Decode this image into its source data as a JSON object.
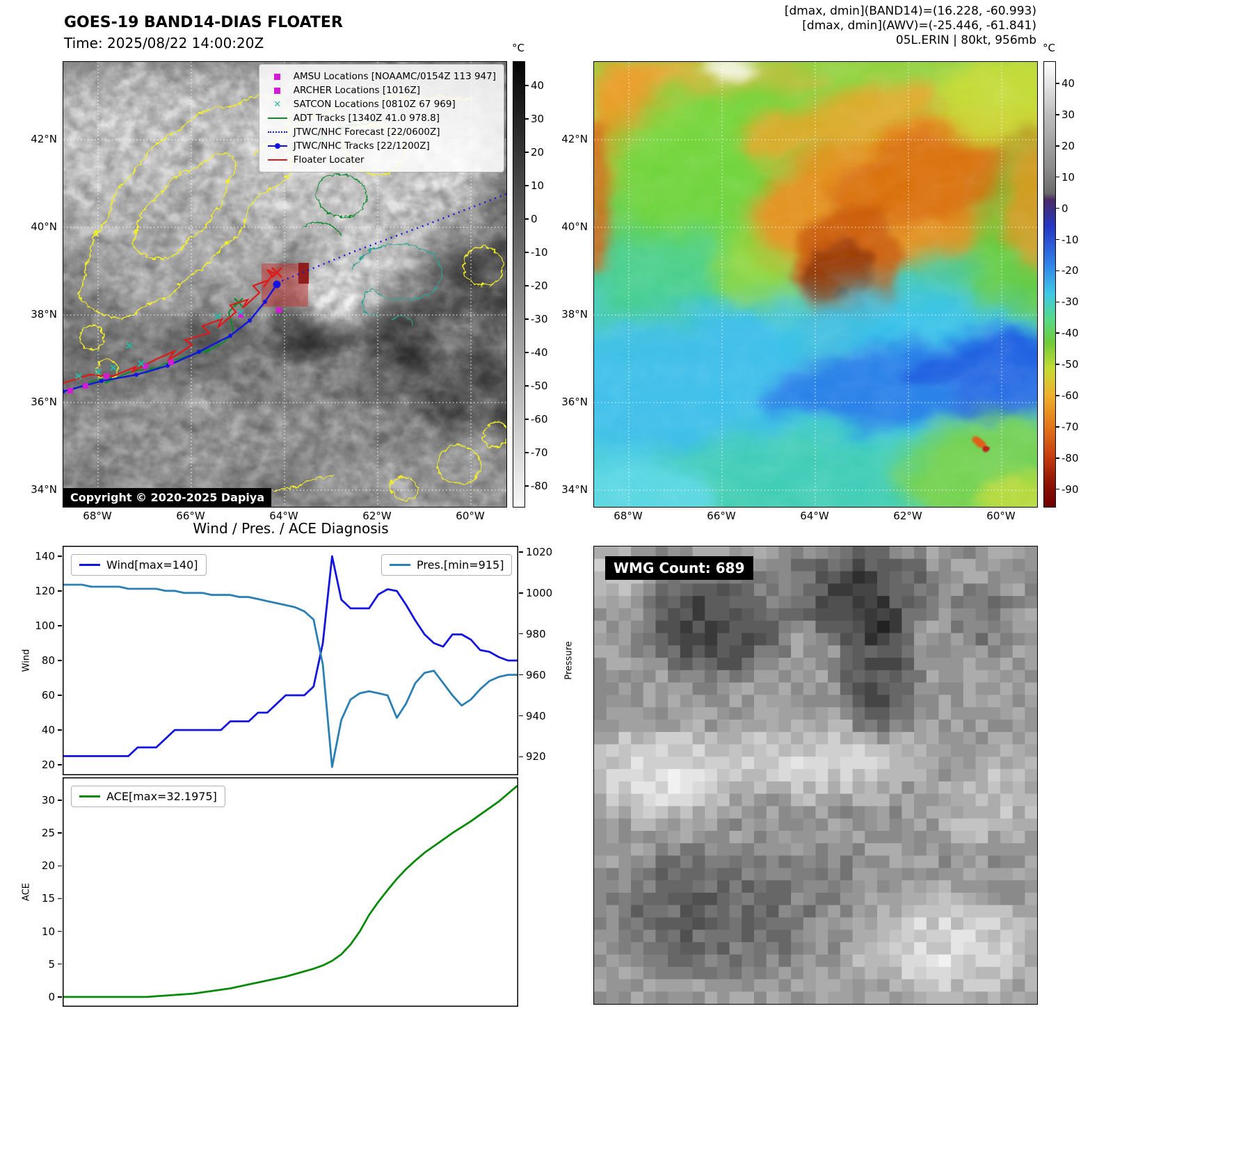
{
  "panel_tl": {
    "title": "GOES-19 BAND14-DIAS FLOATER",
    "subtitle": "Time: 2025/08/22 14:00:20Z",
    "colorbar_unit": "°C",
    "colorbar_ticks": [
      40,
      30,
      20,
      10,
      0,
      -10,
      -20,
      -30,
      -40,
      -50,
      -60,
      -70,
      -80
    ],
    "lat_labels": [
      "42°N",
      "40°N",
      "38°N",
      "36°N",
      "34°N"
    ],
    "lon_labels": [
      "68°W",
      "66°W",
      "64°W",
      "62°W",
      "60°W"
    ],
    "legend": [
      {
        "marker": "square-magenta",
        "label": "AMSU Locations [NOAAMC/0154Z 113 947]"
      },
      {
        "marker": "square-magenta",
        "label": "ARCHER Locations [1016Z]"
      },
      {
        "marker": "x-teal",
        "label": "SATCON Locations [0810Z 67 969]"
      },
      {
        "marker": "line-green",
        "label": "ADT Tracks [1340Z 41.0 978.8]"
      },
      {
        "marker": "dotted-blue",
        "label": "JTWC/NHC Forecast [22/0600Z]"
      },
      {
        "marker": "line-dot-blue",
        "label": "JTWC/NHC Tracks [22/1200Z]"
      },
      {
        "marker": "line-red",
        "label": "Floater Locater"
      }
    ],
    "copyright": "Copyright © 2020-2025 Dapiya"
  },
  "panel_tr": {
    "header_lines": [
      "[dmax, dmin](BAND14)=(16.228, -60.993)",
      "[dmax, dmin](AWV)=(-25.446, -61.841)",
      "05L.ERIN | 80kt, 956mb"
    ],
    "colorbar_unit": "°C",
    "colorbar_ticks": [
      40,
      30,
      20,
      10,
      0,
      -10,
      -20,
      -30,
      -40,
      -50,
      -60,
      -70,
      -80,
      -90
    ],
    "lat_labels": [
      "42°N",
      "40°N",
      "38°N",
      "36°N",
      "34°N"
    ],
    "lon_labels": [
      "68°W",
      "66°W",
      "64°W",
      "62°W",
      "60°W"
    ]
  },
  "panel_br": {
    "label": "WMG Count: 689"
  },
  "chart_data": [
    {
      "type": "line",
      "title": "Wind / Pres. / ACE Diagnosis",
      "ylabel": "Wind",
      "y2label": "Pressure",
      "ylim": [
        14,
        146
      ],
      "y2lim": [
        911,
        1023
      ],
      "yticks": [
        20,
        40,
        60,
        80,
        100,
        120,
        140
      ],
      "y2ticks": [
        920,
        940,
        960,
        980,
        1000,
        1020
      ],
      "legend": [
        {
          "label": "Wind[max=140]",
          "color": "#1414e0"
        },
        {
          "label": "Pres.[min=915]",
          "color": "#2a7fb5"
        }
      ],
      "series": [
        {
          "name": "Wind",
          "axis": "left",
          "color": "#1414e0",
          "values": [
            25,
            25,
            25,
            25,
            25,
            25,
            25,
            25,
            30,
            30,
            30,
            35,
            40,
            40,
            40,
            40,
            40,
            40,
            45,
            45,
            45,
            50,
            50,
            55,
            60,
            60,
            60,
            65,
            90,
            140,
            115,
            110,
            110,
            110,
            118,
            121,
            120,
            112,
            103,
            95,
            90,
            88,
            95,
            95,
            92,
            86,
            85,
            82,
            80,
            80
          ]
        },
        {
          "name": "Pres.",
          "axis": "right",
          "color": "#2a7fb5",
          "values": [
            1004,
            1004,
            1004,
            1003,
            1003,
            1003,
            1003,
            1002,
            1002,
            1002,
            1002,
            1001,
            1001,
            1000,
            1000,
            1000,
            999,
            999,
            999,
            998,
            998,
            997,
            996,
            995,
            994,
            993,
            991,
            987,
            965,
            915,
            938,
            948,
            951,
            952,
            951,
            950,
            939,
            946,
            956,
            961,
            962,
            956,
            950,
            945,
            948,
            953,
            957,
            959,
            960,
            960
          ]
        }
      ]
    },
    {
      "type": "line",
      "ylabel": "ACE",
      "ylim": [
        -1.5,
        33.5
      ],
      "yticks": [
        0,
        5,
        10,
        15,
        20,
        25,
        30
      ],
      "legend": [
        {
          "label": "ACE[max=32.1975]",
          "color": "#0a8a0a"
        }
      ],
      "series": [
        {
          "name": "ACE",
          "axis": "left",
          "color": "#0a8a0a",
          "values": [
            0,
            0,
            0,
            0,
            0,
            0,
            0,
            0,
            0,
            0,
            0.1,
            0.2,
            0.3,
            0.4,
            0.5,
            0.7,
            0.9,
            1.1,
            1.3,
            1.6,
            1.9,
            2.2,
            2.5,
            2.8,
            3.1,
            3.5,
            3.9,
            4.3,
            4.8,
            5.5,
            6.5,
            8,
            10,
            12.5,
            14.5,
            16.3,
            18,
            19.5,
            20.8,
            22,
            23,
            24,
            25,
            25.9,
            26.8,
            27.8,
            28.8,
            29.8,
            31,
            32.2
          ]
        }
      ]
    }
  ]
}
